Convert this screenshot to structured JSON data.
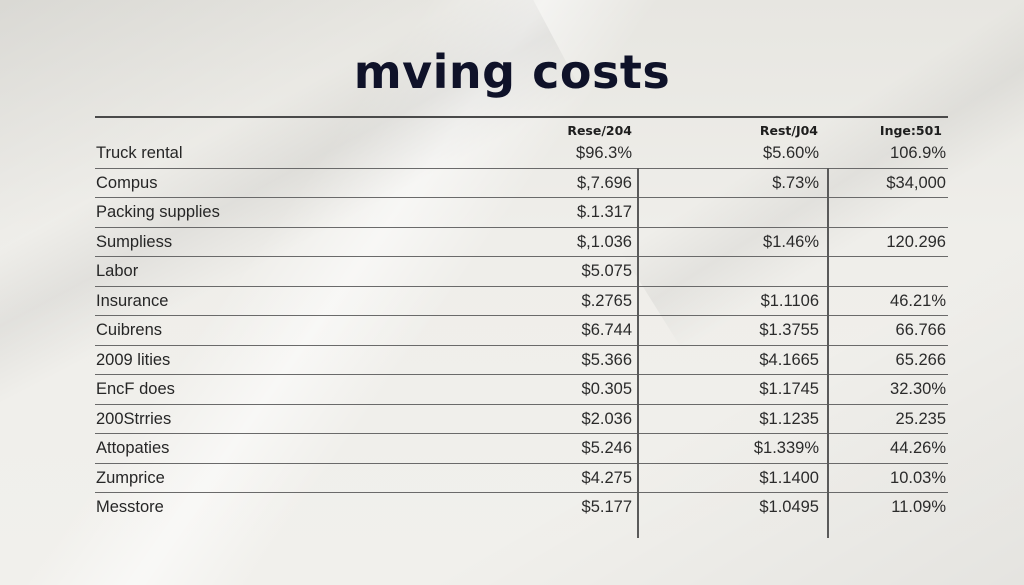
{
  "document": {
    "title": "mving costs",
    "colors": {
      "title": "#0f1229",
      "text": "#262626",
      "rule": "#5a5a5a",
      "background": "#ecebe6"
    }
  },
  "table": {
    "columns": [
      "",
      "Rese/204",
      "Rest/J04",
      "Inge:501"
    ],
    "rows": [
      {
        "label": "Truck rental",
        "c1": "$96.3%",
        "c2": "$5.60%",
        "c3": "106.9%"
      },
      {
        "label": "Compus",
        "c1": "$,7.696",
        "c2": "$.73%",
        "c3": "$34,000"
      },
      {
        "label": "Packing supplies",
        "c1": "$.1.317",
        "c2": "",
        "c3": ""
      },
      {
        "label": "Sumpliess",
        "c1": "$,1.036",
        "c2": "$1.46%",
        "c3": "120.296"
      },
      {
        "label": "Labor",
        "c1": "$5.075",
        "c2": "",
        "c3": ""
      },
      {
        "label": "Insurance",
        "c1": "$.2765",
        "c2": "$1.1106",
        "c3": "46.21%"
      },
      {
        "label": "Cuibrens",
        "c1": "$6.744",
        "c2": "$1.3755",
        "c3": "66.766"
      },
      {
        "label": "2009 lities",
        "c1": "$5.366",
        "c2": "$4.1665",
        "c3": "65.266"
      },
      {
        "label": "EncF does",
        "c1": "$0.305",
        "c2": "$1.1745",
        "c3": "32.30%"
      },
      {
        "label": "200Strries",
        "c1": "$2.036",
        "c2": "$1.1235",
        "c3": "25.235"
      },
      {
        "label": "Attopaties",
        "c1": "$5.246",
        "c2": "$1.339%",
        "c3": "44.26%"
      },
      {
        "label": "Zumprice",
        "c1": "$4.275",
        "c2": "$1.1400",
        "c3": "10.03%"
      },
      {
        "label": "Messtore",
        "c1": "$5.177",
        "c2": "$1.0495",
        "c3": "11.09%"
      }
    ]
  }
}
